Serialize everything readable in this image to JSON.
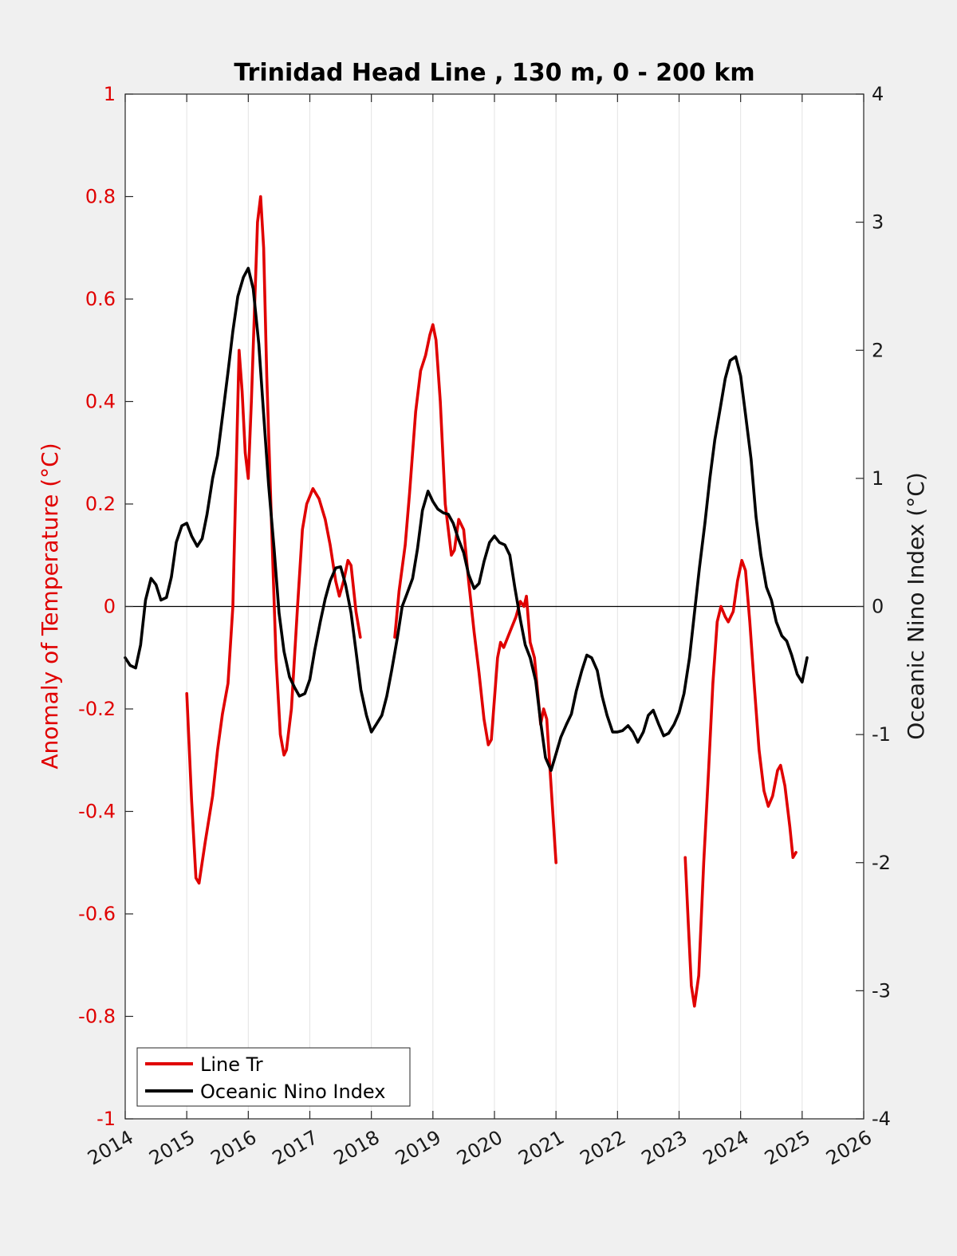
{
  "chart_data": {
    "type": "line",
    "title": "Trinidad Head Line , 130 m, 0 - 200 km",
    "ylabel_left": "Anomaly of Temperature (°C)",
    "ylabel_right": "Oceanic Nino Index (°C)",
    "xlim": [
      2014,
      2026
    ],
    "ylim_left": [
      -1,
      1
    ],
    "ylim_right": [
      -4,
      4
    ],
    "x_ticks": [
      "2014",
      "2015",
      "2016",
      "2017",
      "2018",
      "2019",
      "2020",
      "2021",
      "2022",
      "2023",
      "2024",
      "2025",
      "2026"
    ],
    "y_left_ticks": [
      "-1",
      "-0.8",
      "-0.6",
      "-0.4",
      "-0.2",
      "0",
      "0.2",
      "0.4",
      "0.6",
      "0.8",
      "1"
    ],
    "y_right_ticks": [
      "-4",
      "-3",
      "-2",
      "-1",
      "0",
      "1",
      "2",
      "3",
      "4"
    ],
    "grid": "vertical",
    "zero_line": true,
    "legend_position": "bottom-left",
    "colors": {
      "line_tr": "#e00000",
      "oni": "#000000",
      "axis": "#262626"
    },
    "series": [
      {
        "name": "Line Tr",
        "axis": "left",
        "color": "#e00000",
        "segments": [
          [
            [
              2015.0,
              -0.17
            ],
            [
              2015.08,
              -0.38
            ],
            [
              2015.15,
              -0.53
            ],
            [
              2015.2,
              -0.54
            ],
            [
              2015.3,
              -0.46
            ],
            [
              2015.42,
              -0.37
            ],
            [
              2015.5,
              -0.28
            ],
            [
              2015.58,
              -0.21
            ],
            [
              2015.67,
              -0.15
            ],
            [
              2015.75,
              0.0
            ],
            [
              2015.8,
              0.25
            ],
            [
              2015.85,
              0.5
            ],
            [
              2015.9,
              0.42
            ],
            [
              2015.95,
              0.3
            ],
            [
              2016.0,
              0.25
            ],
            [
              2016.05,
              0.4
            ],
            [
              2016.15,
              0.75
            ],
            [
              2016.2,
              0.8
            ],
            [
              2016.25,
              0.7
            ],
            [
              2016.3,
              0.45
            ],
            [
              2016.38,
              0.15
            ],
            [
              2016.45,
              -0.1
            ],
            [
              2016.52,
              -0.25
            ],
            [
              2016.58,
              -0.29
            ],
            [
              2016.62,
              -0.28
            ],
            [
              2016.7,
              -0.2
            ],
            [
              2016.8,
              0.0
            ],
            [
              2016.88,
              0.15
            ],
            [
              2016.95,
              0.2
            ],
            [
              2017.05,
              0.23
            ],
            [
              2017.15,
              0.21
            ],
            [
              2017.25,
              0.17
            ],
            [
              2017.33,
              0.12
            ],
            [
              2017.42,
              0.05
            ],
            [
              2017.48,
              0.02
            ],
            [
              2017.55,
              0.05
            ],
            [
              2017.62,
              0.09
            ],
            [
              2017.67,
              0.08
            ],
            [
              2017.75,
              -0.01
            ],
            [
              2017.82,
              -0.06
            ]
          ],
          [
            [
              2018.38,
              -0.06
            ],
            [
              2018.45,
              0.03
            ],
            [
              2018.55,
              0.12
            ],
            [
              2018.62,
              0.22
            ],
            [
              2018.72,
              0.38
            ],
            [
              2018.8,
              0.46
            ],
            [
              2018.88,
              0.49
            ],
            [
              2018.95,
              0.53
            ],
            [
              2019.0,
              0.55
            ],
            [
              2019.05,
              0.52
            ],
            [
              2019.12,
              0.4
            ],
            [
              2019.2,
              0.2
            ],
            [
              2019.3,
              0.1
            ],
            [
              2019.35,
              0.11
            ],
            [
              2019.42,
              0.17
            ],
            [
              2019.5,
              0.15
            ],
            [
              2019.58,
              0.05
            ],
            [
              2019.67,
              -0.05
            ],
            [
              2019.75,
              -0.13
            ],
            [
              2019.83,
              -0.22
            ],
            [
              2019.9,
              -0.27
            ],
            [
              2019.95,
              -0.26
            ],
            [
              2020.05,
              -0.1
            ],
            [
              2020.1,
              -0.07
            ],
            [
              2020.15,
              -0.08
            ],
            [
              2020.25,
              -0.05
            ],
            [
              2020.35,
              -0.02
            ],
            [
              2020.42,
              0.01
            ],
            [
              2020.48,
              0.0
            ],
            [
              2020.52,
              0.02
            ],
            [
              2020.58,
              -0.07
            ],
            [
              2020.65,
              -0.1
            ],
            [
              2020.75,
              -0.23
            ],
            [
              2020.8,
              -0.2
            ],
            [
              2020.85,
              -0.22
            ],
            [
              2020.92,
              -0.35
            ],
            [
              2021.0,
              -0.5
            ]
          ],
          [
            [
              2023.1,
              -0.49
            ],
            [
              2023.15,
              -0.62
            ],
            [
              2023.2,
              -0.74
            ],
            [
              2023.25,
              -0.78
            ],
            [
              2023.32,
              -0.72
            ],
            [
              2023.4,
              -0.5
            ],
            [
              2023.48,
              -0.32
            ],
            [
              2023.55,
              -0.15
            ],
            [
              2023.62,
              -0.03
            ],
            [
              2023.68,
              0.0
            ],
            [
              2023.75,
              -0.02
            ],
            [
              2023.8,
              -0.03
            ],
            [
              2023.88,
              -0.01
            ],
            [
              2023.95,
              0.05
            ],
            [
              2024.02,
              0.09
            ],
            [
              2024.08,
              0.07
            ],
            [
              2024.15,
              -0.03
            ],
            [
              2024.22,
              -0.15
            ],
            [
              2024.3,
              -0.28
            ],
            [
              2024.38,
              -0.36
            ],
            [
              2024.45,
              -0.39
            ],
            [
              2024.52,
              -0.37
            ],
            [
              2024.6,
              -0.32
            ],
            [
              2024.65,
              -0.31
            ],
            [
              2024.72,
              -0.35
            ],
            [
              2024.8,
              -0.43
            ],
            [
              2024.85,
              -0.49
            ],
            [
              2024.9,
              -0.48
            ]
          ]
        ]
      },
      {
        "name": "Oceanic Nino Index",
        "axis": "right",
        "color": "#000000",
        "segments": [
          [
            [
              2014.0,
              -0.4
            ],
            [
              2014.08,
              -0.46
            ],
            [
              2014.17,
              -0.48
            ],
            [
              2014.25,
              -0.3
            ],
            [
              2014.33,
              0.05
            ],
            [
              2014.42,
              0.22
            ],
            [
              2014.5,
              0.17
            ],
            [
              2014.58,
              0.05
            ],
            [
              2014.67,
              0.07
            ],
            [
              2014.75,
              0.23
            ],
            [
              2014.83,
              0.5
            ],
            [
              2014.92,
              0.63
            ],
            [
              2015.0,
              0.65
            ],
            [
              2015.08,
              0.55
            ],
            [
              2015.17,
              0.47
            ],
            [
              2015.25,
              0.53
            ],
            [
              2015.33,
              0.72
            ],
            [
              2015.42,
              1.0
            ],
            [
              2015.5,
              1.18
            ],
            [
              2015.58,
              1.48
            ],
            [
              2015.67,
              1.83
            ],
            [
              2015.75,
              2.15
            ],
            [
              2015.83,
              2.42
            ],
            [
              2015.92,
              2.57
            ],
            [
              2016.0,
              2.64
            ],
            [
              2016.08,
              2.48
            ],
            [
              2016.17,
              2.05
            ],
            [
              2016.25,
              1.5
            ],
            [
              2016.33,
              0.95
            ],
            [
              2016.42,
              0.45
            ],
            [
              2016.5,
              -0.05
            ],
            [
              2016.58,
              -0.35
            ],
            [
              2016.67,
              -0.55
            ],
            [
              2016.75,
              -0.63
            ],
            [
              2016.83,
              -0.7
            ],
            [
              2016.92,
              -0.68
            ],
            [
              2017.0,
              -0.57
            ],
            [
              2017.08,
              -0.34
            ],
            [
              2017.17,
              -0.12
            ],
            [
              2017.25,
              0.06
            ],
            [
              2017.33,
              0.2
            ],
            [
              2017.42,
              0.3
            ],
            [
              2017.5,
              0.31
            ],
            [
              2017.58,
              0.17
            ],
            [
              2017.67,
              -0.05
            ],
            [
              2017.75,
              -0.35
            ],
            [
              2017.83,
              -0.65
            ],
            [
              2017.92,
              -0.85
            ],
            [
              2018.0,
              -0.98
            ],
            [
              2018.08,
              -0.92
            ],
            [
              2018.17,
              -0.85
            ],
            [
              2018.25,
              -0.7
            ],
            [
              2018.33,
              -0.5
            ],
            [
              2018.42,
              -0.25
            ],
            [
              2018.5,
              0.0
            ],
            [
              2018.58,
              0.1
            ],
            [
              2018.67,
              0.22
            ],
            [
              2018.75,
              0.45
            ],
            [
              2018.83,
              0.75
            ],
            [
              2018.92,
              0.9
            ],
            [
              2019.0,
              0.82
            ],
            [
              2019.08,
              0.76
            ],
            [
              2019.17,
              0.73
            ],
            [
              2019.25,
              0.72
            ],
            [
              2019.33,
              0.65
            ],
            [
              2019.42,
              0.52
            ],
            [
              2019.5,
              0.42
            ],
            [
              2019.58,
              0.25
            ],
            [
              2019.67,
              0.14
            ],
            [
              2019.75,
              0.18
            ],
            [
              2019.83,
              0.35
            ],
            [
              2019.92,
              0.5
            ],
            [
              2020.0,
              0.55
            ],
            [
              2020.08,
              0.5
            ],
            [
              2020.17,
              0.48
            ],
            [
              2020.25,
              0.4
            ],
            [
              2020.33,
              0.15
            ],
            [
              2020.42,
              -0.1
            ],
            [
              2020.5,
              -0.3
            ],
            [
              2020.58,
              -0.4
            ],
            [
              2020.67,
              -0.58
            ],
            [
              2020.75,
              -0.9
            ],
            [
              2020.83,
              -1.18
            ],
            [
              2020.92,
              -1.28
            ],
            [
              2021.0,
              -1.15
            ],
            [
              2021.08,
              -1.02
            ],
            [
              2021.17,
              -0.92
            ],
            [
              2021.25,
              -0.84
            ],
            [
              2021.33,
              -0.66
            ],
            [
              2021.42,
              -0.5
            ],
            [
              2021.5,
              -0.38
            ],
            [
              2021.58,
              -0.4
            ],
            [
              2021.67,
              -0.5
            ],
            [
              2021.75,
              -0.7
            ],
            [
              2021.83,
              -0.85
            ],
            [
              2021.92,
              -0.98
            ],
            [
              2022.0,
              -0.98
            ],
            [
              2022.08,
              -0.97
            ],
            [
              2022.17,
              -0.93
            ],
            [
              2022.25,
              -0.98
            ],
            [
              2022.33,
              -1.06
            ],
            [
              2022.42,
              -0.98
            ],
            [
              2022.5,
              -0.85
            ],
            [
              2022.58,
              -0.81
            ],
            [
              2022.67,
              -0.92
            ],
            [
              2022.75,
              -1.01
            ],
            [
              2022.83,
              -0.99
            ],
            [
              2022.92,
              -0.92
            ],
            [
              2023.0,
              -0.83
            ],
            [
              2023.08,
              -0.68
            ],
            [
              2023.17,
              -0.4
            ],
            [
              2023.25,
              -0.05
            ],
            [
              2023.33,
              0.3
            ],
            [
              2023.42,
              0.65
            ],
            [
              2023.5,
              1.0
            ],
            [
              2023.58,
              1.3
            ],
            [
              2023.67,
              1.55
            ],
            [
              2023.75,
              1.78
            ],
            [
              2023.83,
              1.92
            ],
            [
              2023.92,
              1.95
            ],
            [
              2024.0,
              1.8
            ],
            [
              2024.08,
              1.5
            ],
            [
              2024.17,
              1.15
            ],
            [
              2024.25,
              0.7
            ],
            [
              2024.33,
              0.4
            ],
            [
              2024.42,
              0.15
            ],
            [
              2024.5,
              0.05
            ],
            [
              2024.58,
              -0.12
            ],
            [
              2024.67,
              -0.23
            ],
            [
              2024.75,
              -0.27
            ],
            [
              2024.83,
              -0.38
            ],
            [
              2024.92,
              -0.53
            ],
            [
              2025.0,
              -0.59
            ],
            [
              2025.08,
              -0.4
            ]
          ]
        ]
      }
    ]
  }
}
